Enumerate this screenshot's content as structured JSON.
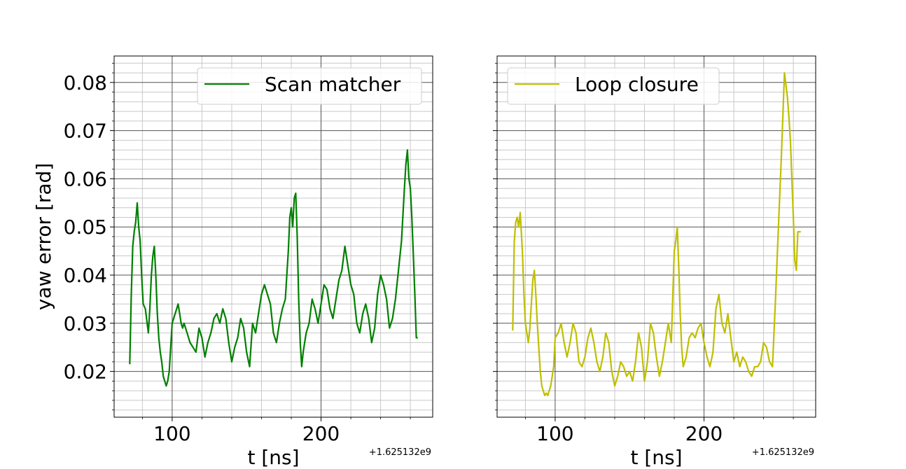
{
  "figure": {
    "ylabel": "yaw error [rad]",
    "sharey": true
  },
  "chart_data": [
    {
      "type": "line",
      "xlabel": "t [ns]",
      "ylabel": "yaw error [rad]",
      "x_offset_label": "+1.625132e9",
      "xlim": [
        61,
        275
      ],
      "ylim": [
        0.0105,
        0.0855
      ],
      "xticks": [
        100,
        200
      ],
      "yticks": [
        0.02,
        0.03,
        0.04,
        0.05,
        0.06,
        0.07,
        0.08
      ],
      "ytick_labels": [
        "0.02",
        "0.03",
        "0.04",
        "0.05",
        "0.06",
        "0.07",
        "0.08"
      ],
      "grid": "major and minor",
      "legend_position": "top-right",
      "series": [
        {
          "name": "Scan matcher",
          "color": "#008000",
          "x": [
            71.5,
            72.5,
            73.5,
            74.5,
            75.5,
            76.5,
            77.5,
            78.5,
            79.5,
            80.5,
            82,
            84,
            85,
            86,
            87,
            88,
            89,
            90,
            91,
            92,
            93,
            94,
            95,
            96,
            97,
            98,
            99,
            100,
            101,
            102,
            103,
            104,
            105,
            106,
            107,
            108,
            110,
            112,
            114,
            116,
            118,
            120,
            122,
            124,
            126,
            128,
            130,
            132,
            134,
            136,
            138,
            140,
            142,
            144,
            146,
            148,
            150,
            152,
            154,
            156,
            158,
            160,
            162,
            164,
            166,
            168,
            170,
            172,
            174,
            176,
            178,
            179,
            180,
            181,
            182,
            183,
            184,
            185,
            186,
            187,
            188,
            190,
            192,
            194,
            196,
            198,
            200,
            202,
            204,
            206,
            208,
            210,
            212,
            214,
            216,
            218,
            220,
            222,
            224,
            226,
            228,
            230,
            232,
            234,
            236,
            238,
            240,
            242,
            244,
            246,
            248,
            250,
            252,
            254,
            256,
            257,
            258,
            259,
            260,
            261,
            262,
            263,
            264,
            265
          ],
          "values": [
            0.0215,
            0.036,
            0.046,
            0.049,
            0.051,
            0.055,
            0.05,
            0.047,
            0.04,
            0.034,
            0.033,
            0.028,
            0.033,
            0.04,
            0.044,
            0.046,
            0.04,
            0.032,
            0.027,
            0.024,
            0.022,
            0.019,
            0.018,
            0.017,
            0.018,
            0.02,
            0.025,
            0.03,
            0.031,
            0.032,
            0.033,
            0.034,
            0.032,
            0.03,
            0.029,
            0.03,
            0.028,
            0.026,
            0.025,
            0.024,
            0.029,
            0.027,
            0.023,
            0.026,
            0.028,
            0.031,
            0.032,
            0.03,
            0.033,
            0.031,
            0.026,
            0.022,
            0.025,
            0.027,
            0.031,
            0.029,
            0.024,
            0.021,
            0.03,
            0.028,
            0.032,
            0.036,
            0.038,
            0.036,
            0.034,
            0.028,
            0.026,
            0.03,
            0.033,
            0.035,
            0.045,
            0.052,
            0.054,
            0.05,
            0.056,
            0.057,
            0.048,
            0.035,
            0.026,
            0.021,
            0.024,
            0.028,
            0.03,
            0.035,
            0.033,
            0.03,
            0.034,
            0.038,
            0.037,
            0.033,
            0.031,
            0.035,
            0.039,
            0.041,
            0.046,
            0.042,
            0.038,
            0.036,
            0.03,
            0.028,
            0.032,
            0.034,
            0.031,
            0.026,
            0.029,
            0.036,
            0.04,
            0.038,
            0.035,
            0.029,
            0.031,
            0.035,
            0.041,
            0.047,
            0.058,
            0.063,
            0.066,
            0.06,
            0.058,
            0.052,
            0.044,
            0.036,
            0.027,
            0.027
          ]
        }
      ]
    },
    {
      "type": "line",
      "xlabel": "t [ns]",
      "ylabel": "",
      "x_offset_label": "+1.625132e9",
      "xlim": [
        61,
        275
      ],
      "ylim": [
        0.0105,
        0.0855
      ],
      "xticks": [
        100,
        200
      ],
      "yticks": [
        0.02,
        0.03,
        0.04,
        0.05,
        0.06,
        0.07,
        0.08
      ],
      "grid": "major and minor",
      "legend_position": "top-left",
      "series": [
        {
          "name": "Loop closure",
          "color": "#bfbf00",
          "x": [
            71.5,
            72.5,
            73.5,
            74.5,
            75.5,
            76.5,
            78,
            79,
            80,
            81,
            82,
            83,
            84,
            85,
            86,
            87,
            88,
            89,
            90,
            91,
            92,
            93,
            94,
            95,
            96,
            97,
            98,
            99,
            100,
            102,
            104,
            106,
            108,
            110,
            112,
            114,
            116,
            118,
            120,
            122,
            124,
            126,
            128,
            130,
            132,
            134,
            136,
            138,
            140,
            142,
            144,
            146,
            148,
            150,
            152,
            154,
            156,
            158,
            160,
            162,
            164,
            166,
            168,
            170,
            172,
            174,
            176,
            178,
            180,
            181,
            182,
            183,
            184,
            185,
            186,
            188,
            190,
            192,
            194,
            196,
            198,
            200,
            202,
            204,
            206,
            208,
            210,
            212,
            214,
            216,
            218,
            220,
            222,
            224,
            226,
            228,
            230,
            232,
            234,
            236,
            238,
            240,
            242,
            244,
            246,
            248,
            250,
            252,
            254,
            256,
            257,
            258,
            259,
            260,
            261,
            262,
            263,
            264,
            265
          ],
          "values": [
            0.0285,
            0.047,
            0.051,
            0.052,
            0.05,
            0.053,
            0.045,
            0.036,
            0.03,
            0.028,
            0.026,
            0.029,
            0.034,
            0.039,
            0.041,
            0.036,
            0.03,
            0.025,
            0.02,
            0.017,
            0.016,
            0.015,
            0.0155,
            0.015,
            0.016,
            0.017,
            0.019,
            0.021,
            0.027,
            0.028,
            0.03,
            0.026,
            0.023,
            0.026,
            0.03,
            0.028,
            0.022,
            0.021,
            0.023,
            0.027,
            0.029,
            0.026,
            0.022,
            0.02,
            0.023,
            0.028,
            0.026,
            0.02,
            0.017,
            0.019,
            0.022,
            0.021,
            0.019,
            0.02,
            0.018,
            0.022,
            0.028,
            0.025,
            0.018,
            0.022,
            0.03,
            0.028,
            0.023,
            0.019,
            0.022,
            0.026,
            0.03,
            0.026,
            0.045,
            0.047,
            0.05,
            0.042,
            0.032,
            0.025,
            0.021,
            0.023,
            0.027,
            0.028,
            0.027,
            0.029,
            0.03,
            0.026,
            0.023,
            0.021,
            0.024,
            0.033,
            0.036,
            0.03,
            0.028,
            0.032,
            0.027,
            0.022,
            0.024,
            0.021,
            0.023,
            0.022,
            0.02,
            0.019,
            0.021,
            0.021,
            0.022,
            0.026,
            0.025,
            0.022,
            0.021,
            0.035,
            0.05,
            0.065,
            0.082,
            0.077,
            0.073,
            0.068,
            0.06,
            0.052,
            0.043,
            0.041,
            0.049,
            0.049,
            0.049
          ]
        }
      ]
    }
  ]
}
